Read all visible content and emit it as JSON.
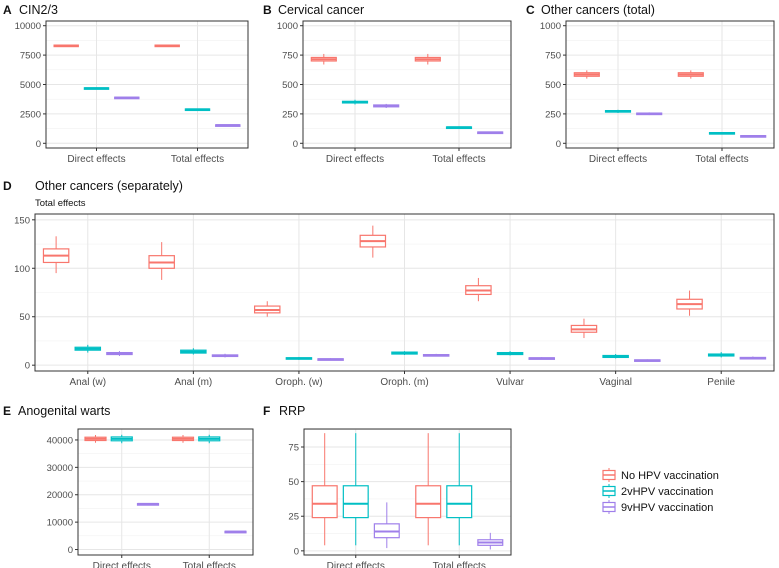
{
  "colors": {
    "no_hpv": "#F8766D",
    "v2": "#00BFC4",
    "v9": "#9F7FEA",
    "grid": "#e6e6e6",
    "frame": "#333333",
    "text": "#111111",
    "tick_text": "#4d4d4d"
  },
  "legend": {
    "placement": "right",
    "items": [
      {
        "key": "no_hpv",
        "label": "No HPV vaccination"
      },
      {
        "key": "v2",
        "label": "2vHPV vaccination"
      },
      {
        "key": "v9",
        "label": "9vHPV vaccination"
      }
    ]
  },
  "chart_data": [
    {
      "panel": "A",
      "title": "CIN2/3",
      "type": "box",
      "subtitle": "",
      "categories": [
        "Direct effects",
        "Total effects"
      ],
      "ylim": [
        -400,
        10400
      ],
      "yticks": [
        0,
        2500,
        5000,
        7500,
        10000
      ],
      "series": [
        {
          "key": "no_hpv",
          "boxes": [
            [
              8200,
              8250,
              8300,
              8350,
              8400
            ],
            [
              8200,
              8250,
              8300,
              8350,
              8400
            ]
          ]
        },
        {
          "key": "v2",
          "boxes": [
            [
              4600,
              4640,
              4680,
              4720,
              4760
            ],
            [
              2800,
              2840,
              2880,
              2920,
              2960
            ]
          ]
        },
        {
          "key": "v9",
          "boxes": [
            [
              3800,
              3840,
              3880,
              3920,
              3960
            ],
            [
              1480,
              1510,
              1540,
              1570,
              1600
            ]
          ]
        }
      ]
    },
    {
      "panel": "B",
      "title": "Cervical cancer",
      "type": "box",
      "subtitle": "",
      "categories": [
        "Direct effects",
        "Total effects"
      ],
      "ylim": [
        -40,
        1040
      ],
      "yticks": [
        0,
        250,
        500,
        750,
        1000
      ],
      "series": [
        {
          "key": "no_hpv",
          "boxes": [
            [
              670,
              700,
              715,
              730,
              760
            ],
            [
              670,
              700,
              715,
              730,
              760
            ]
          ]
        },
        {
          "key": "v2",
          "boxes": [
            [
              330,
              343,
              350,
              357,
              370
            ],
            [
              128,
              133,
              136,
              139,
              144
            ]
          ]
        },
        {
          "key": "v9",
          "boxes": [
            [
              300,
              310,
              318,
              326,
              335
            ],
            [
              85,
              90,
              93,
              96,
              100
            ]
          ]
        }
      ]
    },
    {
      "panel": "C",
      "title": "Other cancers (total)",
      "type": "box",
      "subtitle": "",
      "categories": [
        "Direct effects",
        "Total effects"
      ],
      "ylim": [
        -40,
        1040
      ],
      "yticks": [
        0,
        250,
        500,
        750,
        1000
      ],
      "series": [
        {
          "key": "no_hpv",
          "boxes": [
            [
              550,
              570,
              585,
              600,
              620
            ],
            [
              550,
              570,
              585,
              600,
              620
            ]
          ]
        },
        {
          "key": "v2",
          "boxes": [
            [
              258,
              266,
              272,
              278,
              285
            ],
            [
              80,
              85,
              88,
              91,
              95
            ]
          ]
        },
        {
          "key": "v9",
          "boxes": [
            [
              240,
              247,
              252,
              257,
              263
            ],
            [
              56,
              59,
              62,
              65,
              68
            ]
          ]
        }
      ]
    },
    {
      "panel": "D",
      "title": "Other cancers (separately)",
      "type": "box",
      "subtitle": "Total effects",
      "categories": [
        "Anal (w)",
        "Anal (m)",
        "Oroph. (w)",
        "Oroph. (m)",
        "Vulvar",
        "Vaginal",
        "Penile"
      ],
      "ylim": [
        -6,
        156
      ],
      "yticks": [
        0,
        50,
        100,
        150
      ],
      "series": [
        {
          "key": "no_hpv",
          "boxes": [
            [
              95,
              106,
              113,
              120,
              133
            ],
            [
              88,
              100,
              106,
              113,
              127
            ],
            [
              50,
              54,
              57,
              61,
              66
            ],
            [
              111,
              122,
              128,
              134,
              144
            ],
            [
              66,
              73,
              77,
              82,
              90
            ],
            [
              28,
              34,
              37,
              41,
              48
            ],
            [
              51,
              58,
              63,
              68,
              77
            ]
          ]
        },
        {
          "key": "v2",
          "boxes": [
            [
              13,
              15.5,
              17,
              18.5,
              21
            ],
            [
              11,
              12.5,
              14,
              15.5,
              17.5
            ],
            [
              5.5,
              6.3,
              7,
              7.7,
              8.5
            ],
            [
              10.5,
              11.5,
              12.5,
              13.5,
              14.5
            ],
            [
              10,
              11,
              12,
              13,
              14.5
            ],
            [
              7,
              8,
              9,
              10,
              11.5
            ],
            [
              8,
              9.5,
              10.5,
              11.5,
              13.5
            ]
          ]
        },
        {
          "key": "v9",
          "boxes": [
            [
              9.5,
              11,
              12,
              13,
              14.5
            ],
            [
              8,
              9,
              9.8,
              10.6,
              11.8
            ],
            [
              5,
              5.6,
              6.1,
              6.6,
              7.2
            ],
            [
              9,
              9.7,
              10.3,
              10.9,
              11.7
            ],
            [
              6,
              6.6,
              7.1,
              7.6,
              8.3
            ],
            [
              4,
              4.5,
              5,
              5.5,
              6
            ],
            [
              6,
              6.8,
              7.4,
              8,
              9
            ]
          ]
        }
      ]
    },
    {
      "panel": "E",
      "title": "Anogenital warts",
      "type": "box",
      "subtitle": "",
      "categories": [
        "Direct effects",
        "Total effects"
      ],
      "ylim": [
        -2000,
        44000
      ],
      "yticks": [
        0,
        10000,
        20000,
        30000,
        40000
      ],
      "series": [
        {
          "key": "no_hpv",
          "boxes": [
            [
              39000,
              39800,
              40400,
              41000,
              41800
            ],
            [
              39000,
              39800,
              40400,
              41000,
              41800
            ]
          ]
        },
        {
          "key": "v2",
          "boxes": [
            [
              38800,
              39700,
              40400,
              41100,
              41900
            ],
            [
              38800,
              39700,
              40400,
              41100,
              41900
            ]
          ]
        },
        {
          "key": "v9",
          "boxes": [
            [
              16400,
              16550,
              16650,
              16750,
              16900
            ],
            [
              6350,
              6450,
              6550,
              6650,
              6750
            ]
          ]
        }
      ]
    },
    {
      "panel": "F",
      "title": "RRP",
      "type": "box",
      "subtitle": "",
      "categories": [
        "Direct effects",
        "Total effects"
      ],
      "ylim": [
        -3,
        88
      ],
      "yticks": [
        0,
        25,
        50,
        75
      ],
      "series": [
        {
          "key": "no_hpv",
          "boxes": [
            [
              4,
              24,
              34,
              47,
              85
            ],
            [
              4,
              24,
              34,
              47,
              85
            ]
          ]
        },
        {
          "key": "v2",
          "boxes": [
            [
              4,
              24,
              34,
              47,
              85
            ],
            [
              4,
              24,
              34,
              47,
              85
            ]
          ]
        },
        {
          "key": "v9",
          "boxes": [
            [
              2,
              9.5,
              14,
              19.5,
              35
            ],
            [
              1,
              4,
              6,
              8,
              13
            ]
          ]
        }
      ]
    }
  ]
}
